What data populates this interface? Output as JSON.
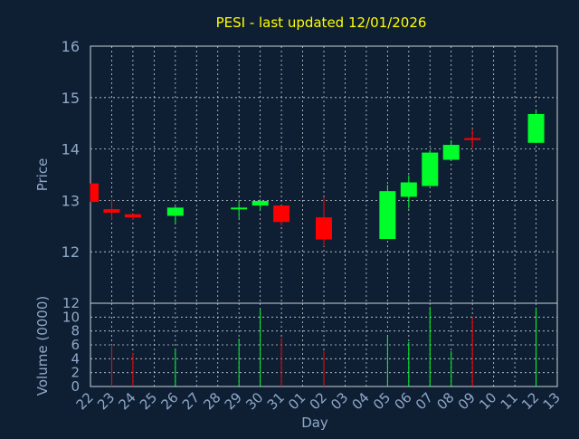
{
  "chart_data": {
    "type": "candlestick",
    "title": "PESI - last updated 12/01/2026",
    "xlabel": "Day",
    "price_ylabel": "Price",
    "volume_ylabel": "Volume (0000)",
    "price_ylim": [
      11.0,
      16.0
    ],
    "price_yticks": [
      "12",
      "13",
      "14",
      "15",
      "16"
    ],
    "volume_ylim": [
      0,
      12
    ],
    "volume_yticks": [
      "0",
      "2",
      "4",
      "6",
      "8",
      "10",
      "12"
    ],
    "x_ticks": [
      "22",
      "23",
      "24",
      "25",
      "26",
      "27",
      "28",
      "29",
      "30",
      "31",
      "01",
      "02",
      "03",
      "04",
      "05",
      "06",
      "07",
      "08",
      "09",
      "10",
      "11",
      "12",
      "13"
    ],
    "grid": true,
    "candles": [
      {
        "day": "22",
        "open": 13.33,
        "high": 13.33,
        "low": 12.97,
        "close": 12.97,
        "volume": 0
      },
      {
        "day": "23",
        "open": 12.83,
        "high": 13.02,
        "low": 12.62,
        "close": 12.76,
        "volume": 6.0
      },
      {
        "day": "24",
        "open": 12.73,
        "high": 12.73,
        "low": 12.62,
        "close": 12.67,
        "volume": 4.8
      },
      {
        "day": "26",
        "open": 12.7,
        "high": 12.88,
        "low": 12.54,
        "close": 12.86,
        "volume": 5.4
      },
      {
        "day": "29",
        "open": 12.83,
        "high": 12.99,
        "low": 12.65,
        "close": 12.86,
        "volume": 6.9
      },
      {
        "day": "30",
        "open": 12.9,
        "high": 13.02,
        "low": 12.82,
        "close": 12.99,
        "volume": 11.2
      },
      {
        "day": "31",
        "open": 12.9,
        "high": 12.9,
        "low": 12.51,
        "close": 12.58,
        "volume": 7.0
      },
      {
        "day": "02",
        "open": 12.67,
        "high": 13.05,
        "low": 12.11,
        "close": 12.24,
        "volume": 5.1
      },
      {
        "day": "05",
        "open": 12.25,
        "high": 13.3,
        "low": 12.25,
        "close": 13.18,
        "volume": 7.3
      },
      {
        "day": "06",
        "open": 13.07,
        "high": 13.49,
        "low": 12.84,
        "close": 13.35,
        "volume": 6.4
      },
      {
        "day": "07",
        "open": 13.28,
        "high": 13.97,
        "low": 13.28,
        "close": 13.93,
        "volume": 11.5
      },
      {
        "day": "08",
        "open": 13.79,
        "high": 14.17,
        "low": 13.79,
        "close": 14.08,
        "volume": 5.1
      },
      {
        "day": "09",
        "open": 14.21,
        "high": 14.39,
        "low": 14.02,
        "close": 14.19,
        "volume": 10.0
      },
      {
        "day": "12",
        "open": 14.12,
        "high": 14.75,
        "low": 14.12,
        "close": 14.68,
        "volume": 11.4
      }
    ],
    "up_color": "#00ff2a",
    "down_color": "#ff0000"
  },
  "colors": {
    "background": "#0f1f33",
    "axis_text": "#8fa8c8",
    "title": "#ffff00",
    "grid": "#c8d0d8",
    "plot_frame": "#c8d0d8"
  }
}
